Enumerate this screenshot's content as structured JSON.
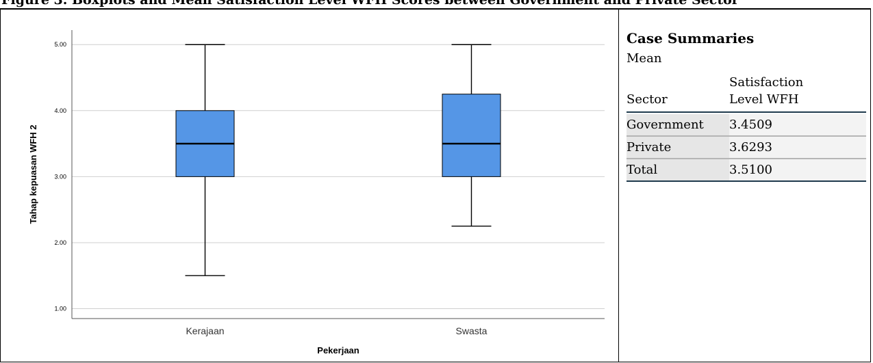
{
  "caption": "Figure 3. Boxplots and Mean Satisfaction Level WFH Scores between Government and Private Sector",
  "chart_data": {
    "type": "boxplot",
    "xlabel": "Pekerjaan",
    "ylabel": "Tahap kepuasan WFH 2",
    "ylim": [
      0.85,
      5.22
    ],
    "yticks": [
      1.0,
      2.0,
      3.0,
      4.0,
      5.0
    ],
    "ytick_labels": [
      "1.00",
      "2.00",
      "3.00",
      "4.00",
      "5.00"
    ],
    "grid": true,
    "box_color": "#5596e6",
    "categories": [
      "Kerajaan",
      "Swasta"
    ],
    "boxes": [
      {
        "category": "Kerajaan",
        "min": 1.5,
        "q1": 3.0,
        "median": 3.5,
        "q3": 4.0,
        "max": 5.0
      },
      {
        "category": "Swasta",
        "min": 2.25,
        "q1": 3.0,
        "median": 3.5,
        "q3": 4.25,
        "max": 5.0
      }
    ]
  },
  "summary": {
    "title": "Case Summaries",
    "subtitle": "Mean",
    "col_sector": "Sector",
    "col_value_line1": "Satisfaction",
    "col_value_line2": "Level WFH",
    "rows": [
      {
        "label": "Government",
        "value": "3.4509"
      },
      {
        "label": "Private",
        "value": "3.6293"
      },
      {
        "label": "Total",
        "value": "3.5100"
      }
    ]
  }
}
